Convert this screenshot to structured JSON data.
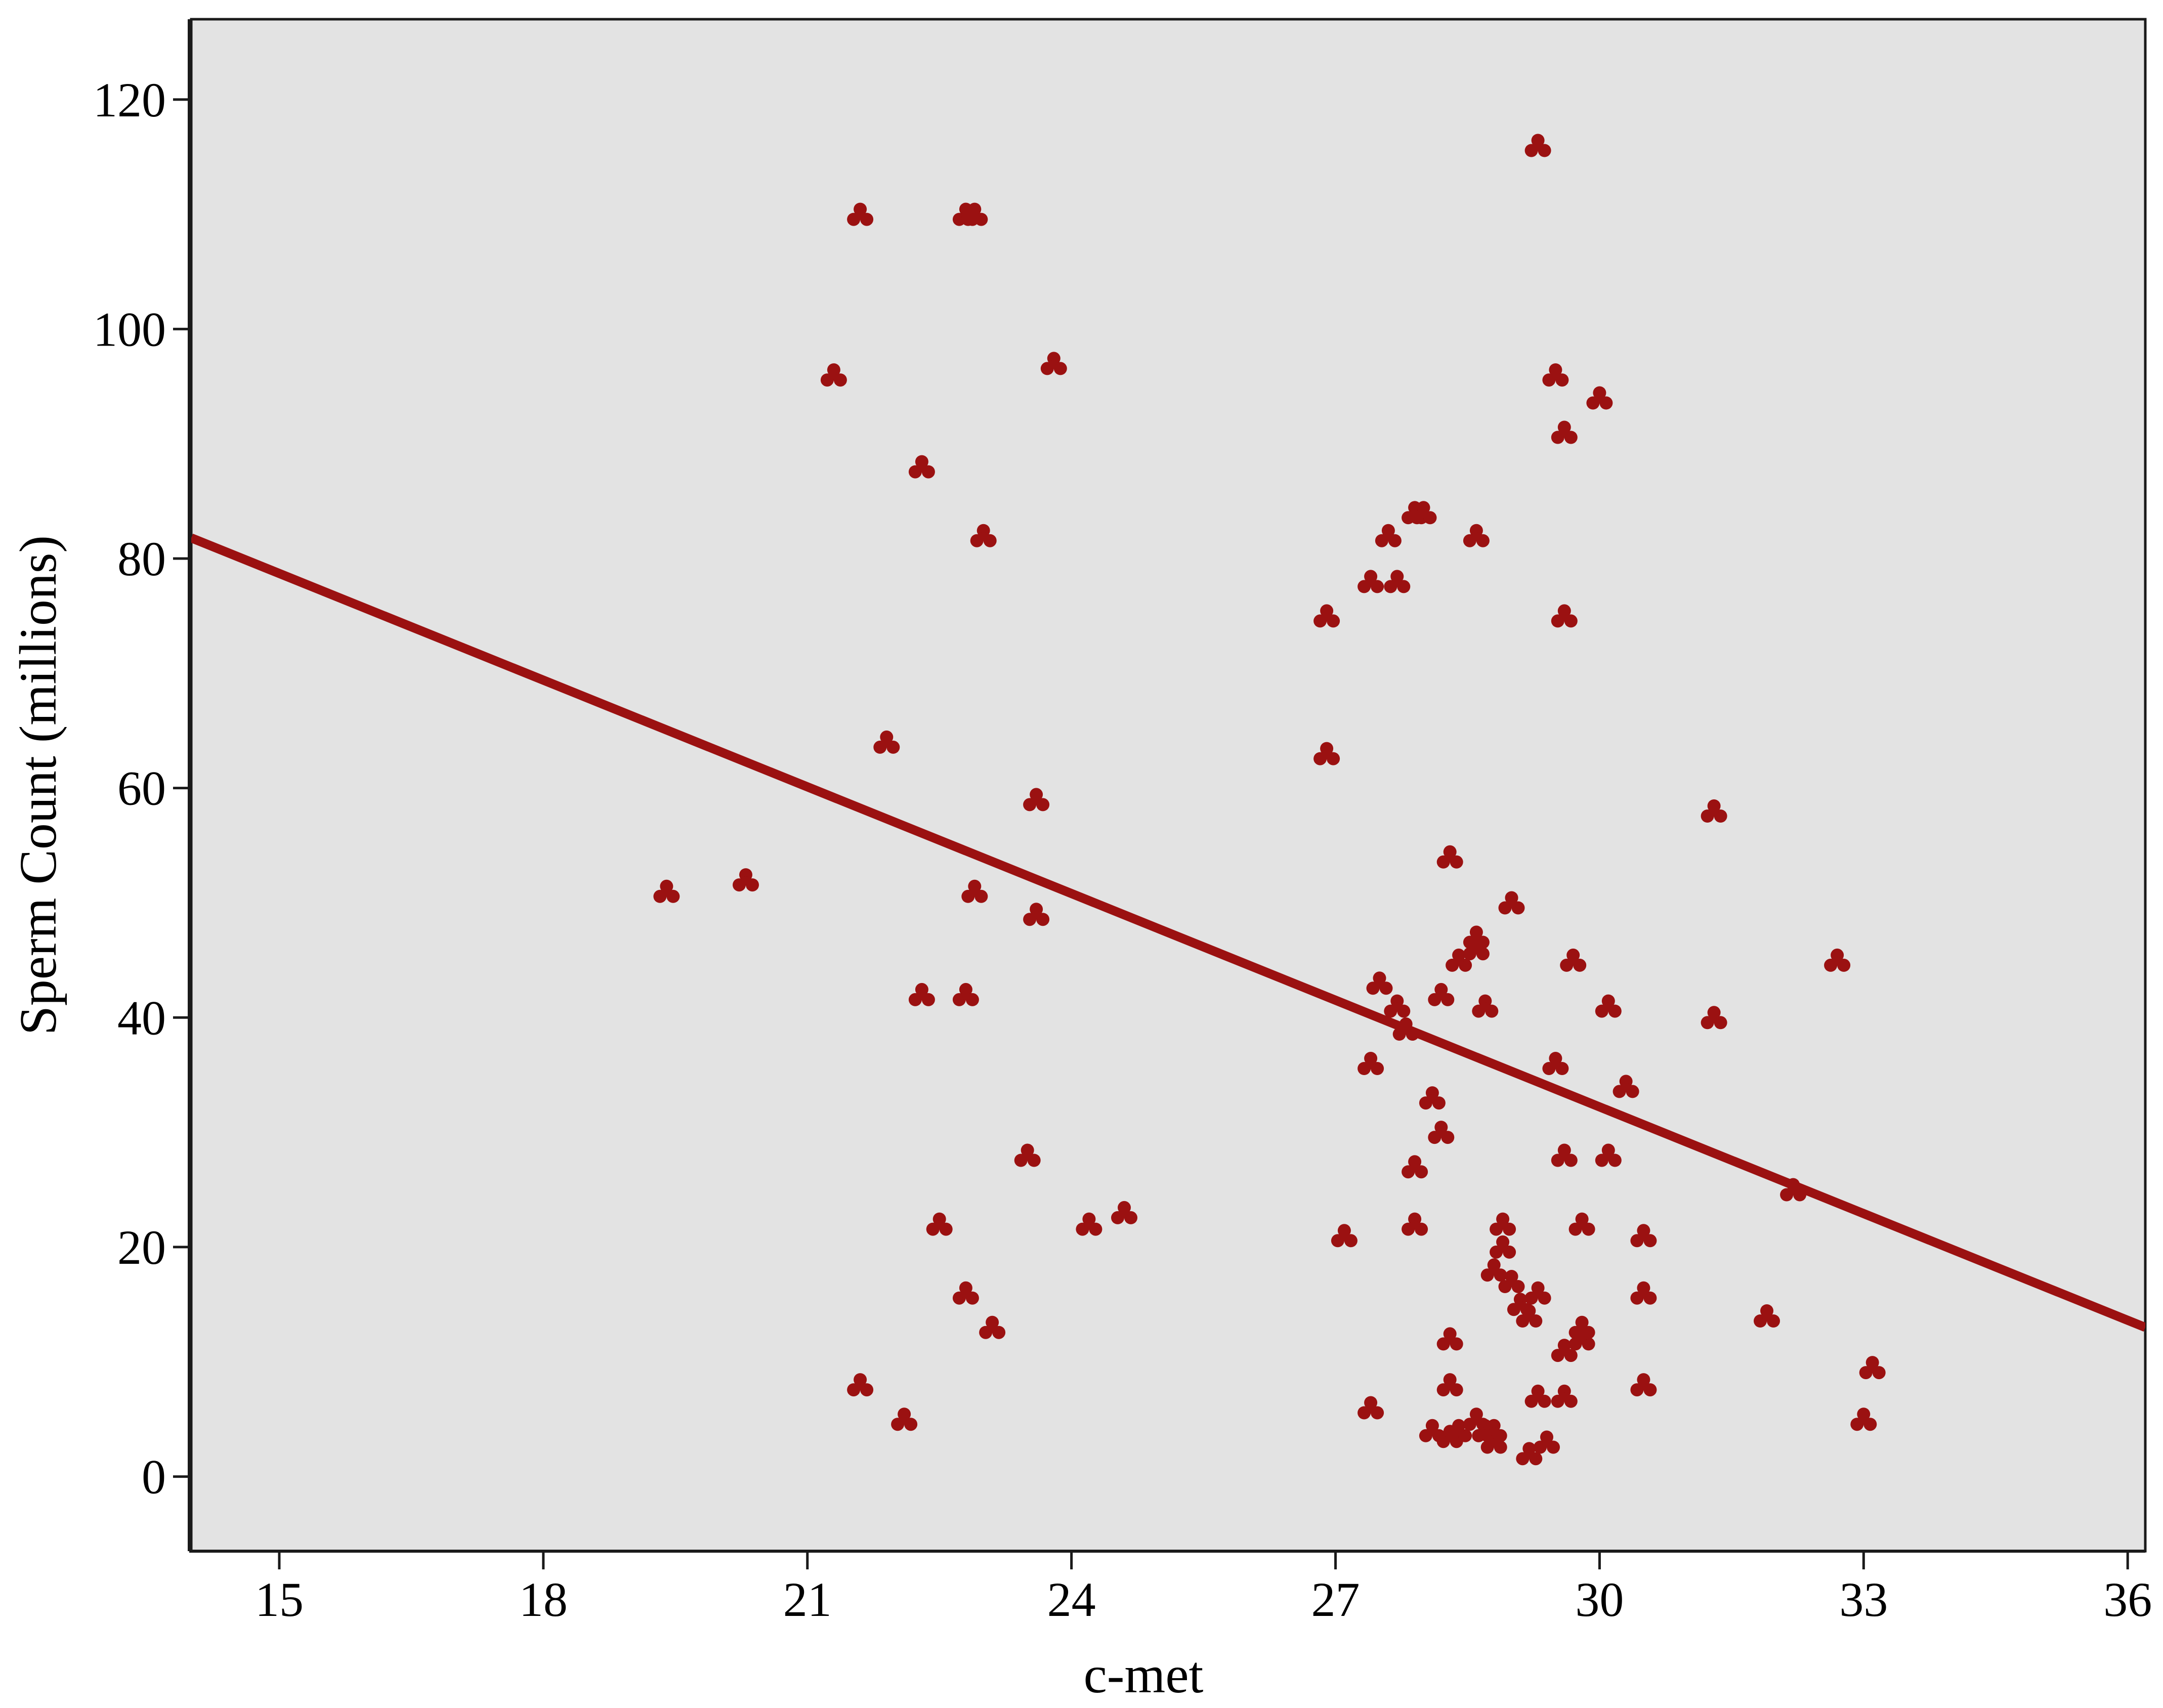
{
  "chart_data": {
    "type": "scatter",
    "xlabel": "c-met",
    "ylabel": "Sperm Count (millions)",
    "xlim": [
      14,
      36.2
    ],
    "ylim": [
      -6.5,
      127
    ],
    "x_ticks": [
      15,
      18,
      21,
      24,
      27,
      30,
      33,
      36
    ],
    "y_ticks": [
      0,
      20,
      40,
      60,
      80,
      100,
      120
    ],
    "grid": false,
    "legend": "none",
    "plot_background": "#e3e3e3",
    "marker_color": "#9b1111",
    "line_color": "#9b1111",
    "fit_line": {
      "x": [
        14,
        36.2
      ],
      "y": [
        81.8,
        13
      ]
    },
    "points": [
      {
        "x": 19.4,
        "y": 51
      },
      {
        "x": 20.3,
        "y": 52
      },
      {
        "x": 21.3,
        "y": 96
      },
      {
        "x": 21.6,
        "y": 110
      },
      {
        "x": 21.6,
        "y": 8
      },
      {
        "x": 21.9,
        "y": 64
      },
      {
        "x": 22.1,
        "y": 5
      },
      {
        "x": 22.3,
        "y": 88
      },
      {
        "x": 22.3,
        "y": 42
      },
      {
        "x": 22.5,
        "y": 22
      },
      {
        "x": 22.8,
        "y": 110
      },
      {
        "x": 22.9,
        "y": 110
      },
      {
        "x": 22.8,
        "y": 42
      },
      {
        "x": 22.8,
        "y": 16
      },
      {
        "x": 23.0,
        "y": 82
      },
      {
        "x": 22.9,
        "y": 51
      },
      {
        "x": 23.1,
        "y": 13
      },
      {
        "x": 23.5,
        "y": 28
      },
      {
        "x": 23.6,
        "y": 59
      },
      {
        "x": 23.6,
        "y": 49
      },
      {
        "x": 23.8,
        "y": 97
      },
      {
        "x": 24.2,
        "y": 22
      },
      {
        "x": 24.6,
        "y": 23
      },
      {
        "x": 26.9,
        "y": 63
      },
      {
        "x": 26.9,
        "y": 75
      },
      {
        "x": 27.1,
        "y": 21
      },
      {
        "x": 27.4,
        "y": 78
      },
      {
        "x": 27.6,
        "y": 82
      },
      {
        "x": 27.7,
        "y": 78
      },
      {
        "x": 27.4,
        "y": 36
      },
      {
        "x": 27.4,
        "y": 6
      },
      {
        "x": 27.5,
        "y": 43
      },
      {
        "x": 27.7,
        "y": 41
      },
      {
        "x": 27.8,
        "y": 39
      },
      {
        "x": 27.9,
        "y": 27
      },
      {
        "x": 27.9,
        "y": 22
      },
      {
        "x": 27.9,
        "y": 84
      },
      {
        "x": 28.0,
        "y": 84
      },
      {
        "x": 28.1,
        "y": 33
      },
      {
        "x": 28.1,
        "y": 4
      },
      {
        "x": 28.2,
        "y": 42
      },
      {
        "x": 28.2,
        "y": 30
      },
      {
        "x": 28.3,
        "y": 54
      },
      {
        "x": 28.3,
        "y": 12
      },
      {
        "x": 28.3,
        "y": 8
      },
      {
        "x": 28.4,
        "y": 45
      },
      {
        "x": 28.3,
        "y": 3.5
      },
      {
        "x": 28.4,
        "y": 4
      },
      {
        "x": 28.6,
        "y": 47
      },
      {
        "x": 28.6,
        "y": 46
      },
      {
        "x": 28.6,
        "y": 82
      },
      {
        "x": 28.7,
        "y": 41
      },
      {
        "x": 28.6,
        "y": 5
      },
      {
        "x": 28.7,
        "y": 4
      },
      {
        "x": 28.8,
        "y": 3
      },
      {
        "x": 28.8,
        "y": 4
      },
      {
        "x": 28.8,
        "y": 18
      },
      {
        "x": 28.9,
        "y": 20
      },
      {
        "x": 28.9,
        "y": 22
      },
      {
        "x": 29.0,
        "y": 17
      },
      {
        "x": 29.0,
        "y": 50
      },
      {
        "x": 29.1,
        "y": 15
      },
      {
        "x": 29.2,
        "y": 14
      },
      {
        "x": 29.2,
        "y": 2
      },
      {
        "x": 29.3,
        "y": 7
      },
      {
        "x": 29.3,
        "y": 16
      },
      {
        "x": 29.3,
        "y": 116
      },
      {
        "x": 29.4,
        "y": 3
      },
      {
        "x": 29.5,
        "y": 96
      },
      {
        "x": 29.5,
        "y": 36
      },
      {
        "x": 29.6,
        "y": 11
      },
      {
        "x": 29.6,
        "y": 7
      },
      {
        "x": 29.6,
        "y": 91
      },
      {
        "x": 29.6,
        "y": 75
      },
      {
        "x": 29.6,
        "y": 28
      },
      {
        "x": 29.7,
        "y": 45
      },
      {
        "x": 29.8,
        "y": 12
      },
      {
        "x": 29.8,
        "y": 13
      },
      {
        "x": 29.8,
        "y": 22
      },
      {
        "x": 30.0,
        "y": 94
      },
      {
        "x": 30.1,
        "y": 28
      },
      {
        "x": 30.1,
        "y": 41
      },
      {
        "x": 30.3,
        "y": 34
      },
      {
        "x": 30.5,
        "y": 21
      },
      {
        "x": 30.5,
        "y": 16
      },
      {
        "x": 30.5,
        "y": 8
      },
      {
        "x": 31.3,
        "y": 58
      },
      {
        "x": 31.3,
        "y": 40
      },
      {
        "x": 31.9,
        "y": 14
      },
      {
        "x": 32.2,
        "y": 25
      },
      {
        "x": 32.7,
        "y": 45
      },
      {
        "x": 33.0,
        "y": 5
      },
      {
        "x": 33.1,
        "y": 9.5
      }
    ]
  }
}
